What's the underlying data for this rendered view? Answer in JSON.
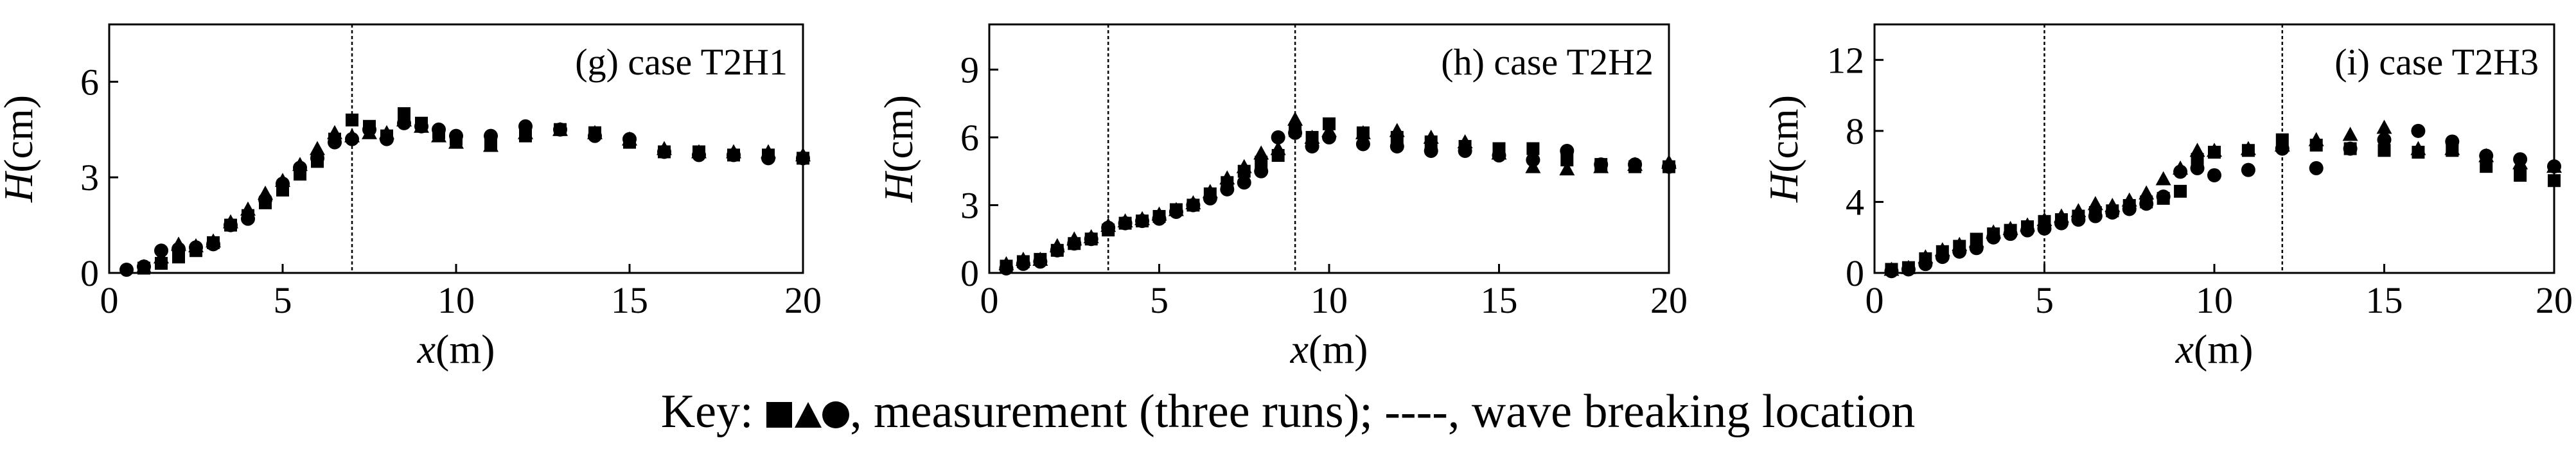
{
  "chart_data": [
    {
      "type": "scatter",
      "title": "(g) case T2H1",
      "xlabel_var": "x",
      "xlabel_unit": "(m)",
      "ylabel_var": "H",
      "ylabel_unit": "(cm)",
      "xlim": [
        0,
        20
      ],
      "ylim": [
        0,
        7.8
      ],
      "xticks": [
        0,
        5,
        10,
        15,
        20
      ],
      "yticks": [
        0,
        3,
        6
      ],
      "breaking_x": [
        7
      ],
      "series": [
        {
          "marker": "square",
          "x": [
            1,
            1.5,
            2,
            2.5,
            3,
            3.5,
            4,
            4.5,
            5,
            5.5,
            6,
            6.5,
            7,
            7.5,
            8,
            8.5,
            9,
            9.5,
            10,
            11,
            12,
            13,
            14,
            15,
            16,
            17,
            18,
            19,
            20
          ],
          "y": [
            0.15,
            0.3,
            0.5,
            0.7,
            0.95,
            1.5,
            1.8,
            2.2,
            2.6,
            3.1,
            3.5,
            4.2,
            4.8,
            4.6,
            4.3,
            5.0,
            4.7,
            4.4,
            4.2,
            4.0,
            4.3,
            4.5,
            4.4,
            4.1,
            3.8,
            3.8,
            3.7,
            3.7,
            3.6
          ]
        },
        {
          "marker": "triangle",
          "x": [
            1,
            1.5,
            2,
            2.5,
            3,
            3.5,
            4,
            4.5,
            5,
            5.5,
            6,
            6.5,
            7,
            7.5,
            8,
            8.5,
            9,
            9.5,
            10,
            11,
            12,
            13,
            14,
            15,
            16,
            17,
            18,
            19,
            20
          ],
          "y": [
            0.2,
            0.5,
            0.9,
            0.85,
            1.0,
            1.6,
            2.0,
            2.5,
            2.9,
            3.4,
            3.9,
            4.4,
            4.3,
            4.4,
            4.4,
            4.8,
            4.6,
            4.3,
            4.1,
            4.0,
            4.4,
            4.5,
            4.4,
            4.2,
            3.9,
            3.8,
            3.8,
            3.8,
            3.7
          ]
        },
        {
          "marker": "circle",
          "x": [
            0.5,
            1,
            1.5,
            2,
            2.5,
            3,
            3.5,
            4,
            4.5,
            5,
            5.5,
            6,
            6.5,
            7,
            7.5,
            8,
            8.5,
            9,
            9.5,
            10,
            11,
            12,
            13,
            14,
            15,
            16,
            17,
            18,
            19,
            20
          ],
          "y": [
            0.1,
            0.2,
            0.7,
            0.75,
            0.8,
            0.9,
            1.5,
            1.7,
            2.3,
            2.8,
            3.3,
            3.6,
            4.1,
            4.2,
            4.5,
            4.2,
            4.7,
            4.6,
            4.5,
            4.3,
            4.3,
            4.6,
            4.5,
            4.3,
            4.2,
            3.8,
            3.7,
            3.7,
            3.6,
            3.6
          ]
        }
      ]
    },
    {
      "type": "scatter",
      "title": "(h) case T2H2",
      "xlabel_var": "x",
      "xlabel_unit": "(m)",
      "ylabel_var": "H",
      "ylabel_unit": "(cm)",
      "xlim": [
        0,
        20
      ],
      "ylim": [
        0,
        11
      ],
      "xticks": [
        0,
        5,
        10,
        15,
        20
      ],
      "yticks": [
        0,
        3,
        6,
        9
      ],
      "breaking_x": [
        3.5,
        9
      ],
      "series": [
        {
          "marker": "square",
          "x": [
            0.5,
            1,
            1.5,
            2,
            2.5,
            3,
            3.5,
            4,
            4.5,
            5,
            5.5,
            6,
            6.5,
            7,
            7.5,
            8,
            8.5,
            9,
            9.5,
            10,
            11,
            12,
            13,
            14,
            15,
            16,
            17,
            18,
            19,
            20
          ],
          "y": [
            0.3,
            0.5,
            0.6,
            1.0,
            1.3,
            1.5,
            1.9,
            2.2,
            2.3,
            2.5,
            2.8,
            3.0,
            3.5,
            4.0,
            4.5,
            4.9,
            5.2,
            6.3,
            6.0,
            6.6,
            6.2,
            6.0,
            5.8,
            5.6,
            5.5,
            5.5,
            5.0,
            4.8,
            4.7,
            4.7
          ]
        },
        {
          "marker": "triangle",
          "x": [
            0.5,
            1,
            1.5,
            2,
            2.5,
            3,
            3.5,
            4,
            4.5,
            5,
            5.5,
            6,
            6.5,
            7,
            7.5,
            8,
            8.5,
            9,
            9.5,
            10,
            11,
            12,
            13,
            14,
            15,
            16,
            17,
            18,
            19,
            20
          ],
          "y": [
            0.4,
            0.6,
            0.6,
            1.2,
            1.5,
            1.6,
            2.1,
            2.3,
            2.4,
            2.6,
            2.8,
            3.1,
            3.6,
            4.2,
            4.7,
            5.3,
            5.5,
            6.8,
            6.0,
            6.3,
            6.2,
            6.3,
            6.0,
            5.8,
            5.3,
            4.7,
            4.6,
            4.7,
            4.8,
            4.9
          ]
        },
        {
          "marker": "circle",
          "x": [
            0.5,
            1,
            1.5,
            2,
            2.5,
            3,
            3.5,
            4,
            4.5,
            5,
            5.5,
            6,
            6.5,
            7,
            7.5,
            8,
            8.5,
            9,
            9.5,
            10,
            11,
            12,
            13,
            14,
            15,
            16,
            17,
            18,
            19,
            20
          ],
          "y": [
            0.2,
            0.4,
            0.5,
            1.0,
            1.3,
            1.5,
            2.0,
            2.2,
            2.3,
            2.4,
            2.7,
            3.0,
            3.3,
            3.7,
            4.0,
            4.5,
            6.0,
            6.2,
            5.6,
            6.0,
            5.7,
            5.6,
            5.4,
            5.4,
            5.2,
            5.0,
            5.4,
            4.8,
            4.8,
            4.7
          ]
        }
      ]
    },
    {
      "type": "scatter",
      "title": "(i) case T2H3",
      "xlabel_var": "x",
      "xlabel_unit": "(m)",
      "ylabel_var": "H",
      "ylabel_unit": "(cm)",
      "xlim": [
        0,
        20
      ],
      "ylim": [
        0,
        14
      ],
      "xticks": [
        0,
        5,
        10,
        15,
        20
      ],
      "yticks": [
        0,
        4,
        8,
        12
      ],
      "breaking_x": [
        5,
        12
      ],
      "series": [
        {
          "marker": "square",
          "x": [
            0.5,
            1,
            1.5,
            2,
            2.5,
            3,
            3.5,
            4,
            4.5,
            5,
            5.5,
            6,
            6.5,
            7,
            7.5,
            8,
            8.5,
            9,
            9.5,
            10,
            11,
            12,
            13,
            14,
            15,
            16,
            17,
            18,
            19,
            20
          ],
          "y": [
            0.2,
            0.3,
            0.8,
            1.2,
            1.5,
            1.9,
            2.2,
            2.4,
            2.6,
            2.9,
            3.0,
            3.2,
            3.4,
            3.5,
            3.8,
            4.0,
            4.2,
            4.6,
            6.4,
            6.8,
            6.9,
            7.5,
            7.2,
            7.0,
            6.9,
            6.8,
            6.9,
            6.0,
            5.5,
            5.2
          ]
        },
        {
          "marker": "triangle",
          "x": [
            0.5,
            1,
            1.5,
            2,
            2.5,
            3,
            3.5,
            4,
            4.5,
            5,
            5.5,
            6,
            6.5,
            7,
            7.5,
            8,
            8.5,
            9,
            9.5,
            10,
            11,
            12,
            13,
            14,
            15,
            16,
            17,
            18,
            19,
            20
          ],
          "y": [
            0.2,
            0.3,
            0.9,
            1.3,
            1.6,
            1.8,
            2.3,
            2.5,
            2.7,
            3.0,
            3.2,
            3.5,
            3.9,
            3.8,
            4.1,
            4.5,
            5.3,
            5.9,
            6.9,
            6.9,
            7.0,
            7.2,
            7.5,
            7.8,
            8.2,
            7.0,
            7.0,
            6.6,
            6.2,
            6.0
          ]
        },
        {
          "marker": "circle",
          "x": [
            0.5,
            1,
            1.5,
            2,
            2.5,
            3,
            3.5,
            4,
            4.5,
            5,
            5.5,
            6,
            6.5,
            7,
            7.5,
            8,
            8.5,
            9,
            9.5,
            10,
            11,
            12,
            13,
            14,
            15,
            16,
            17,
            18,
            19,
            20
          ],
          "y": [
            0.1,
            0.2,
            0.5,
            0.9,
            1.2,
            1.4,
            2.0,
            2.2,
            2.4,
            2.5,
            2.8,
            3.0,
            3.2,
            3.4,
            3.6,
            3.9,
            4.3,
            5.7,
            5.9,
            5.5,
            5.8,
            7.0,
            5.9,
            7.0,
            7.5,
            8.0,
            7.4,
            6.6,
            6.4,
            6.0
          ]
        }
      ]
    }
  ],
  "key": {
    "prefix": "Key: ",
    "measurement_text": ", measurement (three runs); ",
    "dash_symbol": "----",
    "breaking_text": ", wave breaking location"
  }
}
